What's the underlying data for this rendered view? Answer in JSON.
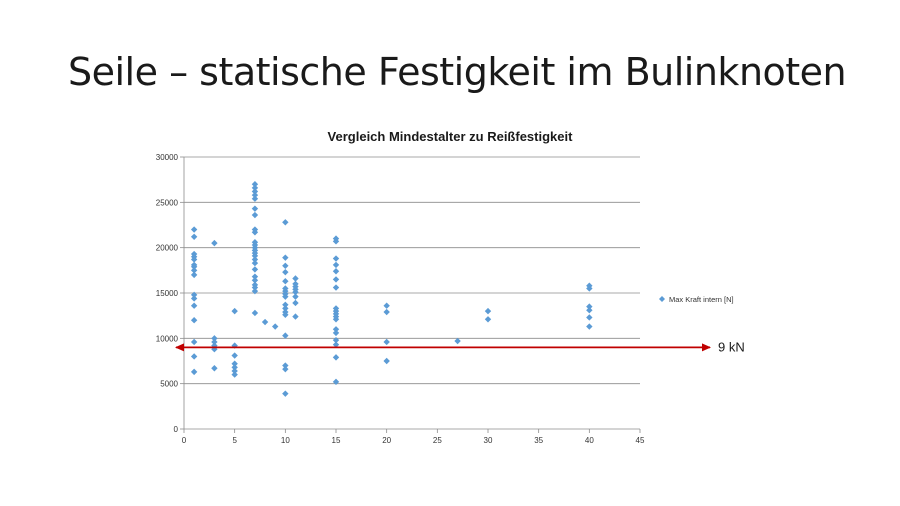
{
  "slide": {
    "title": "Seile – statische Festigkeit im Bulinknoten"
  },
  "chart_data": {
    "type": "scatter",
    "title": "Vergleich Mindestalter zu Reißfestigkeit",
    "xlabel": "",
    "ylabel": "",
    "xlim": [
      0,
      45
    ],
    "ylim": [
      0,
      30000
    ],
    "xticks": [
      0,
      5,
      10,
      15,
      20,
      25,
      30,
      35,
      40,
      45
    ],
    "yticks": [
      0,
      5000,
      10000,
      15000,
      20000,
      25000,
      30000
    ],
    "grid": "horizontal",
    "legend_position": "right",
    "series": [
      {
        "name": "Max Kraft intern [N]",
        "color": "#5b9bd5",
        "marker": "diamond",
        "points": [
          [
            1,
            22000
          ],
          [
            1,
            21200
          ],
          [
            1,
            19300
          ],
          [
            1,
            19000
          ],
          [
            1,
            18700
          ],
          [
            1,
            18100
          ],
          [
            1,
            17900
          ],
          [
            1,
            17500
          ],
          [
            1,
            17000
          ],
          [
            1,
            14800
          ],
          [
            1,
            14400
          ],
          [
            1,
            13600
          ],
          [
            1,
            12000
          ],
          [
            1,
            9600
          ],
          [
            1,
            8000
          ],
          [
            1,
            6300
          ],
          [
            3,
            20500
          ],
          [
            3,
            10000
          ],
          [
            3,
            9600
          ],
          [
            3,
            9200
          ],
          [
            3,
            8800
          ],
          [
            3,
            6700
          ],
          [
            5,
            13000
          ],
          [
            5,
            9200
          ],
          [
            5,
            8100
          ],
          [
            5,
            7200
          ],
          [
            5,
            6800
          ],
          [
            5,
            6400
          ],
          [
            5,
            6000
          ],
          [
            7,
            27000
          ],
          [
            7,
            26600
          ],
          [
            7,
            26200
          ],
          [
            7,
            25800
          ],
          [
            7,
            25400
          ],
          [
            7,
            24300
          ],
          [
            7,
            23600
          ],
          [
            7,
            22000
          ],
          [
            7,
            21700
          ],
          [
            7,
            20600
          ],
          [
            7,
            20300
          ],
          [
            7,
            20000
          ],
          [
            7,
            19700
          ],
          [
            7,
            19400
          ],
          [
            7,
            19100
          ],
          [
            7,
            18700
          ],
          [
            7,
            18300
          ],
          [
            7,
            17600
          ],
          [
            7,
            16800
          ],
          [
            7,
            16400
          ],
          [
            7,
            15900
          ],
          [
            7,
            15600
          ],
          [
            7,
            15200
          ],
          [
            7,
            12800
          ],
          [
            8,
            11800
          ],
          [
            9,
            11300
          ],
          [
            10,
            22800
          ],
          [
            10,
            18900
          ],
          [
            10,
            18000
          ],
          [
            10,
            17300
          ],
          [
            10,
            16300
          ],
          [
            10,
            15500
          ],
          [
            10,
            15200
          ],
          [
            10,
            14900
          ],
          [
            10,
            14600
          ],
          [
            10,
            13700
          ],
          [
            10,
            13300
          ],
          [
            10,
            12900
          ],
          [
            10,
            12600
          ],
          [
            10,
            10300
          ],
          [
            10,
            7000
          ],
          [
            10,
            6600
          ],
          [
            10,
            3900
          ],
          [
            11,
            16600
          ],
          [
            11,
            16000
          ],
          [
            11,
            15700
          ],
          [
            11,
            15400
          ],
          [
            11,
            15100
          ],
          [
            11,
            14600
          ],
          [
            11,
            13900
          ],
          [
            11,
            12400
          ],
          [
            15,
            21000
          ],
          [
            15,
            20700
          ],
          [
            15,
            18800
          ],
          [
            15,
            18100
          ],
          [
            15,
            17400
          ],
          [
            15,
            16500
          ],
          [
            15,
            15600
          ],
          [
            15,
            13300
          ],
          [
            15,
            13000
          ],
          [
            15,
            12700
          ],
          [
            15,
            12400
          ],
          [
            15,
            12100
          ],
          [
            15,
            11000
          ],
          [
            15,
            10600
          ],
          [
            15,
            9800
          ],
          [
            15,
            9300
          ],
          [
            15,
            7900
          ],
          [
            15,
            5200
          ],
          [
            20,
            13600
          ],
          [
            20,
            12900
          ],
          [
            20,
            9600
          ],
          [
            20,
            7500
          ],
          [
            27,
            9700
          ],
          [
            30,
            13000
          ],
          [
            30,
            12100
          ],
          [
            40,
            15800
          ],
          [
            40,
            15500
          ],
          [
            40,
            13500
          ],
          [
            40,
            13100
          ],
          [
            40,
            12300
          ],
          [
            40,
            11300
          ]
        ]
      }
    ],
    "annotation": {
      "label": "9 kN",
      "value": 9000,
      "color": "#c00000"
    }
  }
}
